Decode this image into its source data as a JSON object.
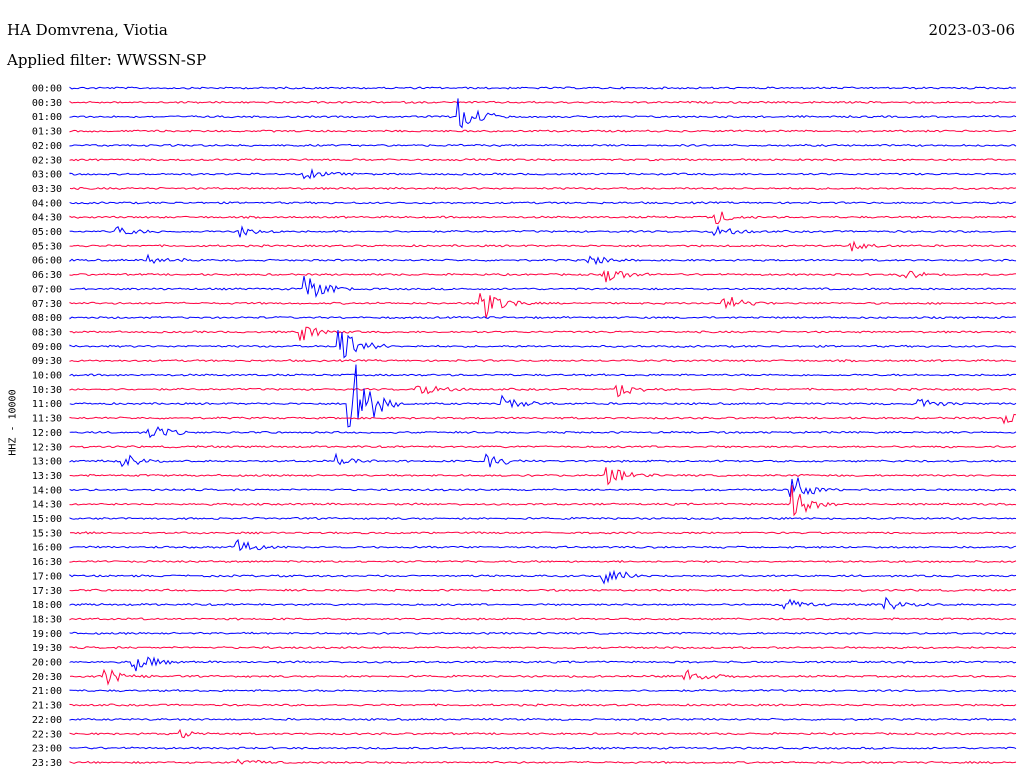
{
  "header": {
    "station": "HA Domvrena, Viotia",
    "date": "2023-03-06",
    "filter": "Applied filter: WWSSN-SP"
  },
  "chart_data": {
    "type": "line",
    "title": "HA Domvrena, Viotia",
    "subtitle": "Applied filter: WWSSN-SP",
    "date": "2023-03-06",
    "ylabel": "HHZ - 10000",
    "row_labels": [
      "00:00",
      "00:30",
      "01:00",
      "01:30",
      "02:00",
      "02:30",
      "03:00",
      "03:30",
      "04:00",
      "04:30",
      "05:00",
      "05:30",
      "06:00",
      "06:30",
      "07:00",
      "07:30",
      "08:00",
      "08:30",
      "09:00",
      "09:30",
      "10:00",
      "10:30",
      "11:00",
      "11:30",
      "12:00",
      "12:30",
      "13:00",
      "13:30",
      "14:00",
      "14:30",
      "15:00",
      "15:30",
      "16:00",
      "16:30",
      "17:00",
      "17:30",
      "18:00",
      "18:30",
      "19:00",
      "19:30",
      "20:00",
      "20:30",
      "21:00",
      "21:30",
      "22:00",
      "22:30",
      "23:00",
      "23:30"
    ],
    "colors": [
      "#0000ff",
      "#ff0040"
    ],
    "x_range_minutes": [
      0,
      30
    ],
    "events": [
      {
        "row": 2,
        "minute": 12.4,
        "amplitude": 1.5
      },
      {
        "row": 6,
        "minute": 7.5,
        "amplitude": 0.4
      },
      {
        "row": 9,
        "minute": 20.5,
        "amplitude": 0.5
      },
      {
        "row": 10,
        "minute": 1.6,
        "amplitude": 0.4
      },
      {
        "row": 10,
        "minute": 5.4,
        "amplitude": 0.4
      },
      {
        "row": 10,
        "minute": 20.5,
        "amplitude": 0.4
      },
      {
        "row": 11,
        "minute": 24.8,
        "amplitude": 0.4
      },
      {
        "row": 12,
        "minute": 2.6,
        "amplitude": 0.5
      },
      {
        "row": 12,
        "minute": 16.5,
        "amplitude": 0.4
      },
      {
        "row": 13,
        "minute": 17.0,
        "amplitude": 0.7
      },
      {
        "row": 13,
        "minute": 26.4,
        "amplitude": 0.4
      },
      {
        "row": 14,
        "minute": 7.5,
        "amplitude": 0.9
      },
      {
        "row": 14,
        "minute": 7.5,
        "amplitude": 0.5
      },
      {
        "row": 15,
        "minute": 13.1,
        "amplitude": 1.5
      },
      {
        "row": 15,
        "minute": 20.8,
        "amplitude": 0.6
      },
      {
        "row": 17,
        "minute": 7.4,
        "amplitude": 0.8
      },
      {
        "row": 18,
        "minute": 8.6,
        "amplitude": 2.0
      },
      {
        "row": 21,
        "minute": 11.1,
        "amplitude": 0.6
      },
      {
        "row": 21,
        "minute": 17.4,
        "amplitude": 0.6
      },
      {
        "row": 22,
        "minute": 8.9,
        "amplitude": 5.0
      },
      {
        "row": 22,
        "minute": 13.8,
        "amplitude": 0.6
      },
      {
        "row": 22,
        "minute": 27.0,
        "amplitude": 0.5
      },
      {
        "row": 23,
        "minute": 29.7,
        "amplitude": 0.5
      },
      {
        "row": 24,
        "minute": 2.6,
        "amplitude": 0.6
      },
      {
        "row": 26,
        "minute": 1.7,
        "amplitude": 0.6
      },
      {
        "row": 26,
        "minute": 8.5,
        "amplitude": 0.5
      },
      {
        "row": 26,
        "minute": 13.3,
        "amplitude": 0.6
      },
      {
        "row": 27,
        "minute": 17.1,
        "amplitude": 0.8
      },
      {
        "row": 28,
        "minute": 22.9,
        "amplitude": 1.2
      },
      {
        "row": 29,
        "minute": 22.9,
        "amplitude": 1.8
      },
      {
        "row": 32,
        "minute": 5.4,
        "amplitude": 0.5
      },
      {
        "row": 34,
        "minute": 17.0,
        "amplitude": 0.8
      },
      {
        "row": 36,
        "minute": 22.7,
        "amplitude": 0.5
      },
      {
        "row": 36,
        "minute": 25.9,
        "amplitude": 0.5
      },
      {
        "row": 40,
        "minute": 2.1,
        "amplitude": 0.9
      },
      {
        "row": 41,
        "minute": 1.2,
        "amplitude": 0.6
      },
      {
        "row": 41,
        "minute": 19.6,
        "amplitude": 0.6
      },
      {
        "row": 45,
        "minute": 3.6,
        "amplitude": 0.3
      },
      {
        "row": 47,
        "minute": 5.4,
        "amplitude": 0.3
      }
    ]
  }
}
